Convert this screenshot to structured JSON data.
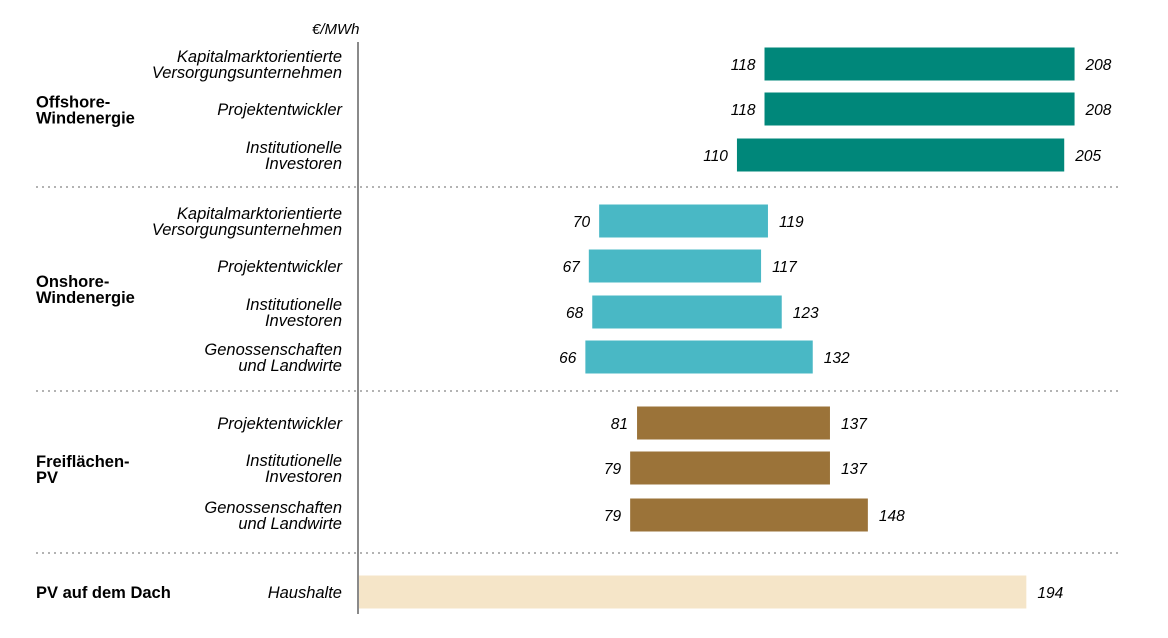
{
  "chart_data": {
    "type": "bar",
    "orientation": "horizontal",
    "subtype": "floating-range",
    "unit_label": "€/MWh",
    "xlim": [
      0,
      215
    ],
    "grid": false,
    "colors": {
      "offshore": "#00877a",
      "onshore": "#49b8c5",
      "freiflaechen": "#9b7339",
      "dach": "#f5e5c8",
      "axis": "#8a8a8a",
      "separator": "#9a9a9a"
    },
    "groups": [
      {
        "label_lines": [
          "Offshore-",
          "Windenergie"
        ],
        "color_key": "offshore",
        "rows": [
          {
            "label_lines": [
              "Kapitalmarktorientierte",
              "Versorgungsunternehmen"
            ],
            "low": 118,
            "high": 208
          },
          {
            "label_lines": [
              "Projektentwickler"
            ],
            "low": 118,
            "high": 208
          },
          {
            "label_lines": [
              "Institutionelle",
              "Investoren"
            ],
            "low": 110,
            "high": 205
          }
        ]
      },
      {
        "label_lines": [
          "Onshore-",
          "Windenergie"
        ],
        "color_key": "onshore",
        "rows": [
          {
            "label_lines": [
              "Kapitalmarktorientierte",
              "Versorgungsunternehmen"
            ],
            "low": 70,
            "high": 119
          },
          {
            "label_lines": [
              "Projektentwickler"
            ],
            "low": 67,
            "high": 117
          },
          {
            "label_lines": [
              "Institutionelle",
              "Investoren"
            ],
            "low": 68,
            "high": 123
          },
          {
            "label_lines": [
              "Genossenschaften",
              "und Landwirte"
            ],
            "low": 66,
            "high": 132
          }
        ]
      },
      {
        "label_lines": [
          "Freiflächen-",
          "PV"
        ],
        "color_key": "freiflaechen",
        "rows": [
          {
            "label_lines": [
              "Projektentwickler"
            ],
            "low": 81,
            "high": 137
          },
          {
            "label_lines": [
              "Institutionelle",
              "Investoren"
            ],
            "low": 79,
            "high": 137
          },
          {
            "label_lines": [
              "Genossenschaften",
              "und Landwirte"
            ],
            "low": 79,
            "high": 148
          }
        ]
      },
      {
        "label_lines": [
          "PV auf dem Dach"
        ],
        "color_key": "dach",
        "rows": [
          {
            "label_lines": [
              "Haushalte"
            ],
            "low": 0,
            "high": 194,
            "show_low": false
          }
        ]
      }
    ]
  }
}
